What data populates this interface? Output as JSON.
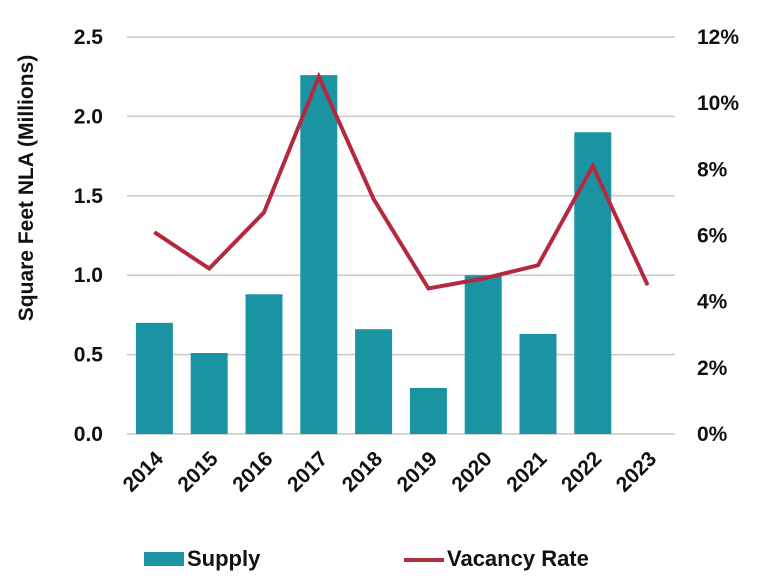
{
  "chart_data": {
    "type": "bar",
    "categories": [
      "2014",
      "2015",
      "2016",
      "2017",
      "2018",
      "2019",
      "2020",
      "2021",
      "2022",
      "2023"
    ],
    "series": [
      {
        "name": "Supply",
        "type": "bar",
        "axis": "left",
        "values": [
          0.7,
          0.51,
          0.88,
          2.26,
          0.66,
          0.29,
          1.0,
          0.63,
          1.9,
          null
        ]
      },
      {
        "name": "Vacancy Rate",
        "type": "line",
        "axis": "right",
        "values": [
          0.061,
          0.05,
          0.067,
          0.108,
          0.071,
          0.044,
          0.047,
          0.051,
          0.081,
          0.045
        ]
      }
    ],
    "ylabel": "Square Feet NLA (Millions)",
    "ylim": [
      0,
      2.5
    ],
    "yticks": [
      0.0,
      0.5,
      1.0,
      1.5,
      2.0,
      2.5
    ],
    "ytick_labels": [
      "0.0",
      "0.5",
      "1.0",
      "1.5",
      "2.0",
      "2.5"
    ],
    "y2lim": [
      0,
      0.12
    ],
    "y2ticks": [
      0,
      0.02,
      0.04,
      0.06,
      0.08,
      0.1,
      0.12
    ],
    "y2tick_labels": [
      "0%",
      "2%",
      "4%",
      "6%",
      "8%",
      "10%",
      "12%"
    ],
    "grid": true,
    "legend": "bottom",
    "colors": {
      "bar": "#1a94a3",
      "line": "#b5293f",
      "grid": "#c9c9c9"
    }
  }
}
